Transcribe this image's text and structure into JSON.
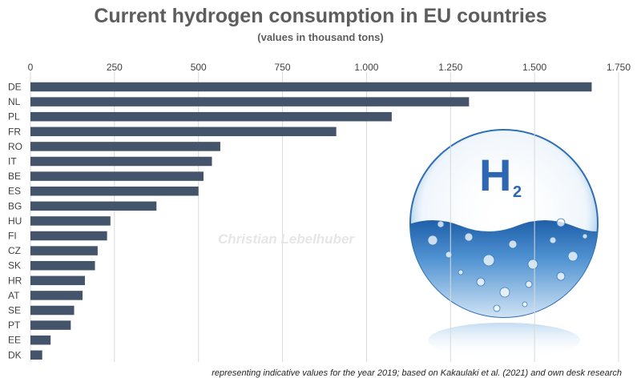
{
  "chart_data": {
    "type": "bar",
    "orientation": "horizontal",
    "title": "Current hydrogen consumption in EU countries",
    "subtitle": "(values in thousand tons)",
    "categories": [
      "DE",
      "NL",
      "PL",
      "FR",
      "RO",
      "IT",
      "BE",
      "ES",
      "BG",
      "HU",
      "FI",
      "CZ",
      "SK",
      "HR",
      "AT",
      "SE",
      "PT",
      "EE",
      "DK"
    ],
    "values": [
      1670,
      1305,
      1075,
      910,
      565,
      540,
      515,
      500,
      375,
      238,
      228,
      200,
      192,
      162,
      155,
      130,
      120,
      60,
      35
    ],
    "xlim": [
      0,
      1750
    ],
    "xticks": [
      0,
      250,
      500,
      750,
      1000,
      1250,
      1500,
      1750
    ],
    "xtick_labels": [
      "0",
      "250",
      "500",
      "750",
      "1.000",
      "1.250",
      "1.500",
      "1.750"
    ],
    "bar_color": "#44546a",
    "grid": true,
    "footnote": "representing indicative values for the year 2019; based on Kakaulaki et al. (2021) and own desk research",
    "watermark": "Christian Lebelhuber",
    "image": {
      "main_text": "H",
      "subscript": "2"
    }
  }
}
